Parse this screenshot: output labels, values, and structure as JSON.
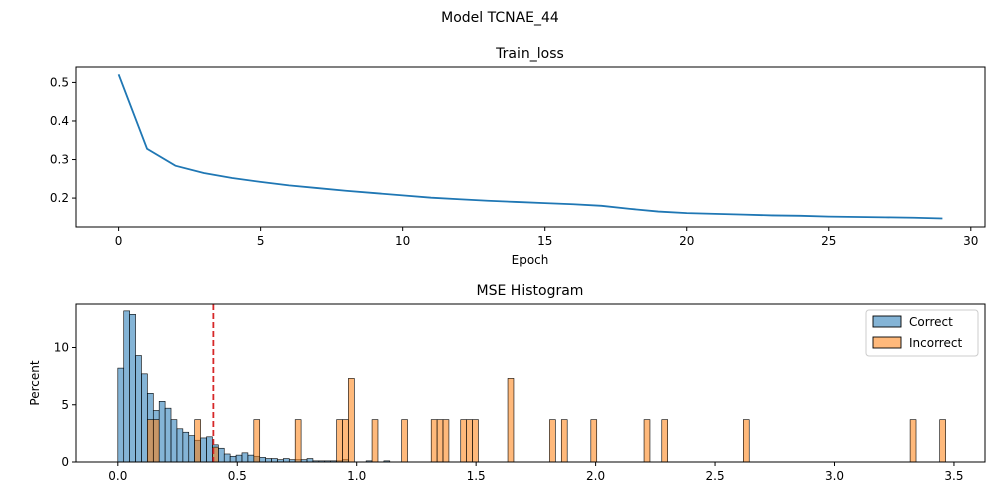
{
  "suptitle": "Model TCNAE_44",
  "chart_data": [
    {
      "type": "line",
      "title": "Train_loss",
      "xlabel": "Epoch",
      "ylabel": "",
      "xlim": [
        -1.5,
        30.5
      ],
      "ylim": [
        0.125,
        0.54
      ],
      "xticks": [
        0,
        5,
        10,
        15,
        20,
        25,
        30
      ],
      "yticks": [
        0.2,
        0.3,
        0.4,
        0.5
      ],
      "grid": false,
      "color": "#1f77b4",
      "x": [
        0,
        1,
        2,
        3,
        4,
        5,
        6,
        7,
        8,
        9,
        10,
        11,
        12,
        13,
        14,
        15,
        16,
        17,
        18,
        19,
        20,
        21,
        22,
        23,
        24,
        25,
        26,
        27,
        28,
        29
      ],
      "y": [
        0.521,
        0.328,
        0.284,
        0.265,
        0.252,
        0.242,
        0.233,
        0.226,
        0.219,
        0.213,
        0.207,
        0.201,
        0.197,
        0.193,
        0.19,
        0.187,
        0.184,
        0.18,
        0.172,
        0.165,
        0.161,
        0.159,
        0.157,
        0.155,
        0.154,
        0.152,
        0.151,
        0.15,
        0.149,
        0.147
      ]
    },
    {
      "type": "histogram",
      "title": "MSE Histogram",
      "xlabel": "",
      "ylabel": "Percent",
      "xlim": [
        -0.175,
        3.63
      ],
      "ylim": [
        0,
        13.8
      ],
      "xticks": [
        0.0,
        0.5,
        1.0,
        1.5,
        2.0,
        2.5,
        3.0,
        3.5
      ],
      "xtick_labels": [
        "0.0",
        "0.5",
        "1.0",
        "1.5",
        "2.0",
        "2.5",
        "3.0",
        "3.5"
      ],
      "yticks": [
        0,
        5,
        10
      ],
      "bin_width": 0.02475,
      "threshold": 0.4,
      "threshold_color": "#d62728",
      "legend_position": "top-right",
      "series": [
        {
          "name": "Correct",
          "color": "#1f77b4",
          "bin_starts": [
            0.0,
            0.02475,
            0.0495,
            0.07425,
            0.099,
            0.12375,
            0.1485,
            0.17325,
            0.198,
            0.22275,
            0.2475,
            0.27225,
            0.297,
            0.32175,
            0.3465,
            0.37125,
            0.396,
            0.42075,
            0.4455,
            0.47025,
            0.495,
            0.51975,
            0.5445,
            0.56925,
            0.594,
            0.61875,
            0.6435,
            0.66825,
            0.693,
            0.71775,
            0.7425,
            0.76725,
            0.792,
            0.81675,
            0.8415,
            0.86625,
            0.891,
            0.91575,
            0.9405,
            1.0395,
            1.11375
          ],
          "values": [
            8.2,
            13.2,
            12.9,
            9.3,
            7.7,
            6.0,
            4.5,
            5.3,
            4.7,
            3.7,
            2.9,
            2.6,
            2.3,
            1.9,
            2.1,
            2.2,
            1.5,
            1.2,
            0.7,
            0.5,
            0.6,
            0.8,
            0.6,
            0.5,
            0.4,
            0.3,
            0.3,
            0.2,
            0.3,
            0.2,
            0.2,
            0.2,
            0.3,
            0.1,
            0.1,
            0.1,
            0.1,
            0.1,
            0.2,
            0.1,
            0.1
          ]
        },
        {
          "name": "Incorrect",
          "color": "#ff7f0e",
          "bin_starts": [
            0.12375,
            0.1485,
            0.3217,
            0.396,
            0.5693,
            0.7425,
            0.9158,
            0.9405,
            0.9653,
            1.0643,
            1.188,
            1.3118,
            1.3365,
            1.3613,
            1.4355,
            1.4603,
            1.485,
            1.6335,
            1.8068,
            1.8563,
            1.98,
            2.2028,
            2.277,
            2.6183,
            3.3165,
            3.4403
          ],
          "values": [
            3.7,
            3.7,
            3.7,
            1.3,
            3.7,
            3.7,
            3.7,
            3.7,
            7.3,
            3.7,
            3.7,
            3.7,
            3.7,
            3.7,
            3.7,
            3.7,
            3.7,
            7.3,
            3.7,
            3.7,
            3.7,
            3.7,
            3.7,
            3.7,
            3.7,
            3.7
          ]
        }
      ]
    }
  ]
}
